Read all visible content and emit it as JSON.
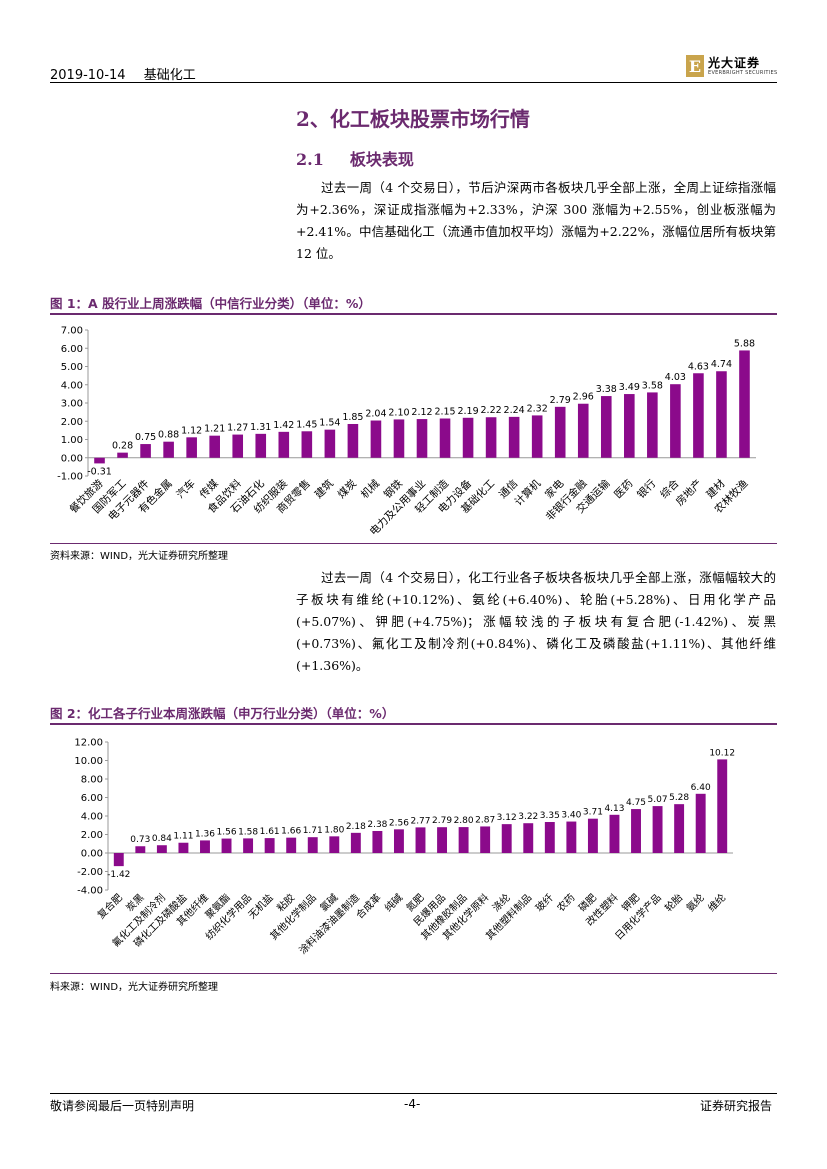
{
  "header": {
    "date": "2019-10-14",
    "sector": "基础化工",
    "logo_cn": "光大证券",
    "logo_en": "EVERBRIGHT SECURITIES",
    "logo_letter": "E"
  },
  "section": {
    "title": "2、化工板块股票市场行情",
    "subsection_num": "2.1",
    "subsection_title": "板块表现"
  },
  "paragraph1": "过去一周（4 个交易日），节后沪深两市各板块几乎全部上涨，全周上证综指涨幅为+2.36%，深证成指涨幅为+2.33%，沪深 300 涨幅为+2.55%，创业板涨幅为+2.41%。中信基础化工（流通市值加权平均）涨幅为+2.22%，涨幅位居所有板块第 12 位。",
  "paragraph2": "过去一周（4 个交易日），化工行业各子板块各板块几乎全部上涨，涨幅幅较大的子板块有维纶(+10.12%)、氨纶(+6.40%)、轮胎(+5.28%)、日用化学产品(+5.07%)、钾肥(+4.75%)；涨幅较浅的子板块有复合肥(-1.42%)、炭黑(+0.73%)、氟化工及制冷剂(+0.84%)、磷化工及磷酸盐(+1.11%)、其他纤维(+1.36%)。",
  "figure1": {
    "title": "图 1：A 股行业上周涨跌幅（中信行业分类）（单位：%）",
    "source": "资料来源：WIND，光大证券研究所整理"
  },
  "figure2": {
    "title": "图 2：化工各子行业本周涨跌幅（申万行业分类）（单位：%）",
    "source": "料来源：WIND，光大证券研究所整理"
  },
  "footer": {
    "left": "敬请参阅最后一页特别声明",
    "page": "-4-",
    "right": "证券研究报告"
  },
  "colors": {
    "bar": "#8b0a8b",
    "accent": "#6b2a6f"
  },
  "chart_data": [
    {
      "type": "bar",
      "title": "A 股行业上周涨跌幅（中信行业分类）（单位：%）",
      "ylim": [
        -1.0,
        7.0
      ],
      "yticks": [
        "7.00",
        "6.00",
        "5.00",
        "4.00",
        "3.00",
        "2.00",
        "1.00",
        "0.00",
        "-1.00"
      ],
      "categories": [
        "餐饮旅游",
        "国防军工",
        "电子元器件",
        "有色金属",
        "汽车",
        "传媒",
        "食品饮料",
        "石油石化",
        "纺织服装",
        "商贸零售",
        "建筑",
        "煤炭",
        "机械",
        "钢铁",
        "电力及公用事业",
        "轻工制造",
        "电力设备",
        "基础化工",
        "通信",
        "计算机",
        "家电",
        "非银行金融",
        "交通运输",
        "医药",
        "银行",
        "综合",
        "房地产",
        "建材",
        "农林牧渔"
      ],
      "values": [
        -0.31,
        0.28,
        0.75,
        0.88,
        1.12,
        1.21,
        1.27,
        1.31,
        1.42,
        1.45,
        1.54,
        1.85,
        2.04,
        2.1,
        2.12,
        2.15,
        2.19,
        2.22,
        2.24,
        2.32,
        2.79,
        2.96,
        3.38,
        3.49,
        3.58,
        4.03,
        4.63,
        4.74,
        5.88
      ],
      "labels": [
        "-0.31",
        "0.28",
        "0.75",
        "0.88",
        "1.12",
        "1.21",
        "1.27",
        "1.31",
        "1.42",
        "1.45",
        "1.54",
        "1.85",
        "2.04",
        "2.10",
        "2.12",
        "2.15",
        "2.19",
        "2.22",
        "2.24",
        "2.32",
        "2.79",
        "2.96",
        "3.38",
        "3.49",
        "3.58",
        "4.03",
        "4.63",
        "4.74",
        "5.88"
      ]
    },
    {
      "type": "bar",
      "title": "化工各子行业本周涨跌幅（申万行业分类）（单位：%）",
      "ylim": [
        -4.0,
        12.0
      ],
      "yticks": [
        "12.00",
        "10.00",
        "8.00",
        "6.00",
        "4.00",
        "2.00",
        "0.00",
        "-2.00",
        "-4.00"
      ],
      "categories": [
        "复合肥",
        "炭黑",
        "氟化工及制冷剂",
        "磷化工及磷酸盐",
        "其他纤维",
        "聚氨酯",
        "纺织化学用品",
        "无机盐",
        "粘胶",
        "其他化学制品",
        "氯碱",
        "涂料油漆油墨制造",
        "合成革",
        "纯碱",
        "氮肥",
        "民爆用品",
        "其他橡胶制品",
        "其他化学原料",
        "涤纶",
        "其他塑料制品",
        "玻纤",
        "农药",
        "磷肥",
        "改性塑料",
        "钾肥",
        "日用化学产品",
        "轮胎",
        "氨纶",
        "维纶"
      ],
      "values": [
        -1.42,
        0.73,
        0.84,
        1.11,
        1.36,
        1.56,
        1.58,
        1.61,
        1.66,
        1.71,
        1.8,
        2.18,
        2.38,
        2.56,
        2.77,
        2.79,
        2.8,
        2.87,
        3.12,
        3.22,
        3.35,
        3.4,
        3.71,
        4.13,
        4.75,
        5.07,
        5.28,
        6.4,
        10.12
      ],
      "labels": [
        "-1.42",
        "0.73",
        "0.84",
        "1.11",
        "1.36",
        "1.56",
        "1.58",
        "1.61",
        "1.66",
        "1.71",
        "1.80",
        "2.18",
        "2.38",
        "2.56",
        "2.77",
        "2.79",
        "2.80",
        "2.87",
        "3.12",
        "3.22",
        "3.35",
        "3.40",
        "3.71",
        "4.13",
        "4.75",
        "5.07",
        "5.28",
        "6.40",
        "10.12"
      ]
    }
  ]
}
